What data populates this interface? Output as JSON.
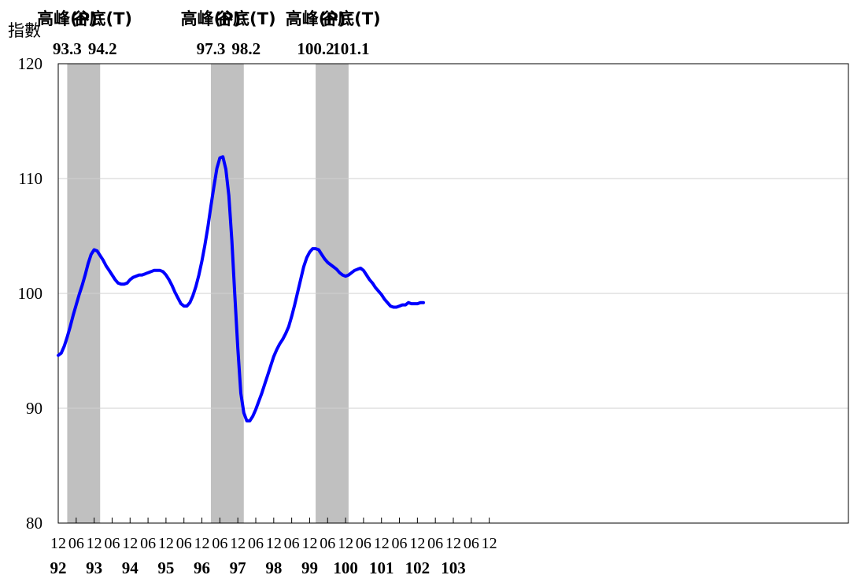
{
  "chart_data": {
    "type": "line",
    "ylabel": "指數",
    "ylim": [
      80,
      120
    ],
    "yticks": [
      80,
      90,
      100,
      110,
      120
    ],
    "xlim": [
      "1992-12",
      "2014-12"
    ],
    "x_month_ticks": [
      "12",
      "06",
      "12",
      "06",
      "12",
      "06",
      "12",
      "06",
      "12",
      "06",
      "12",
      "06",
      "12",
      "06",
      "12",
      "06",
      "12",
      "06",
      "12",
      "06",
      "12",
      "06",
      "12",
      "06",
      "12"
    ],
    "x_year_labels": [
      {
        "at": "1992-12",
        "label": "92"
      },
      {
        "at": "1993-12",
        "label": "93"
      },
      {
        "at": "1994-12",
        "label": "94"
      },
      {
        "at": "1995-12",
        "label": "95"
      },
      {
        "at": "1996-12",
        "label": "96"
      },
      {
        "at": "1997-12",
        "label": "97"
      },
      {
        "at": "1998-12",
        "label": "98"
      },
      {
        "at": "1999-12",
        "label": "99"
      },
      {
        "at": "2000-12",
        "label": "100"
      },
      {
        "at": "2001-12",
        "label": "101"
      },
      {
        "at": "2002-12",
        "label": "102"
      },
      {
        "at": "2003-12",
        "label": "103"
      }
    ],
    "grid": true,
    "line_color": "#0000ff",
    "shade_color": "#c0c0c0",
    "recessions": [
      {
        "start": "1993-03",
        "end": "1994-02",
        "peak_label": "高峰(P)",
        "peak_date": "93.3",
        "trough_label": "谷底(T)",
        "trough_date": "94.2"
      },
      {
        "start": "1997-03",
        "end": "1998-02",
        "peak_label": "高峰(P)",
        "peak_date": "97.3",
        "trough_label": "谷底(T)",
        "trough_date": "98.2"
      },
      {
        "start": "2000-02",
        "end": "2001-01",
        "peak_label": "高峰(P)",
        "peak_date": "100.2",
        "trough_label": "谷底(T)",
        "trough_date": "101.1"
      }
    ],
    "series": [
      {
        "values": [
          [
            "1992-12",
            94.6
          ],
          [
            "1993-01",
            94.8
          ],
          [
            "1993-02",
            95.4
          ],
          [
            "1993-03",
            96.2
          ],
          [
            "1993-04",
            97.1
          ],
          [
            "1993-05",
            98.1
          ],
          [
            "1993-06",
            99.0
          ],
          [
            "1993-07",
            99.9
          ],
          [
            "1993-08",
            100.7
          ],
          [
            "1993-09",
            101.6
          ],
          [
            "1993-10",
            102.6
          ],
          [
            "1993-11",
            103.4
          ],
          [
            "1993-12",
            103.8
          ],
          [
            "1994-01",
            103.7
          ],
          [
            "1994-02",
            103.3
          ],
          [
            "1994-03",
            102.9
          ],
          [
            "1994-04",
            102.4
          ],
          [
            "1994-05",
            102.0
          ],
          [
            "1994-06",
            101.6
          ],
          [
            "1994-07",
            101.2
          ],
          [
            "1994-08",
            100.9
          ],
          [
            "1994-09",
            100.8
          ],
          [
            "1994-10",
            100.8
          ],
          [
            "1994-11",
            100.9
          ],
          [
            "1994-12",
            101.2
          ],
          [
            "1995-01",
            101.4
          ],
          [
            "1995-02",
            101.5
          ],
          [
            "1995-03",
            101.6
          ],
          [
            "1995-04",
            101.6
          ],
          [
            "1995-05",
            101.7
          ],
          [
            "1995-06",
            101.8
          ],
          [
            "1995-07",
            101.9
          ],
          [
            "1995-08",
            102.0
          ],
          [
            "1995-09",
            102.0
          ],
          [
            "1995-10",
            102.0
          ],
          [
            "1995-11",
            101.9
          ],
          [
            "1995-12",
            101.6
          ],
          [
            "1996-01",
            101.2
          ],
          [
            "1996-02",
            100.7
          ],
          [
            "1996-03",
            100.1
          ],
          [
            "1996-04",
            99.6
          ],
          [
            "1996-05",
            99.1
          ],
          [
            "1996-06",
            98.9
          ],
          [
            "1996-07",
            98.9
          ],
          [
            "1996-08",
            99.2
          ],
          [
            "1996-09",
            99.8
          ],
          [
            "1996-10",
            100.6
          ],
          [
            "1996-11",
            101.6
          ],
          [
            "1996-12",
            102.8
          ],
          [
            "1997-01",
            104.2
          ],
          [
            "1997-02",
            105.8
          ],
          [
            "1997-03",
            107.6
          ],
          [
            "1997-04",
            109.3
          ],
          [
            "1997-05",
            110.9
          ],
          [
            "1997-06",
            111.8
          ],
          [
            "1997-07",
            111.9
          ],
          [
            "1997-08",
            110.8
          ],
          [
            "1997-09",
            108.5
          ],
          [
            "1997-10",
            104.6
          ],
          [
            "1997-11",
            99.8
          ],
          [
            "1997-12",
            95.2
          ],
          [
            "1998-01",
            91.3
          ],
          [
            "1998-02",
            89.6
          ],
          [
            "1998-03",
            88.9
          ],
          [
            "1998-04",
            88.9
          ],
          [
            "1998-05",
            89.3
          ],
          [
            "1998-06",
            89.9
          ],
          [
            "1998-07",
            90.6
          ],
          [
            "1998-08",
            91.3
          ],
          [
            "1998-09",
            92.1
          ],
          [
            "1998-10",
            92.9
          ],
          [
            "1998-11",
            93.7
          ],
          [
            "1998-12",
            94.5
          ],
          [
            "1999-01",
            95.1
          ],
          [
            "1999-02",
            95.6
          ],
          [
            "1999-03",
            96.0
          ],
          [
            "1999-04",
            96.5
          ],
          [
            "1999-05",
            97.1
          ],
          [
            "1999-06",
            98.0
          ],
          [
            "1999-07",
            99.0
          ],
          [
            "1999-08",
            100.1
          ],
          [
            "1999-09",
            101.2
          ],
          [
            "1999-10",
            102.3
          ],
          [
            "1999-11",
            103.1
          ],
          [
            "1999-12",
            103.6
          ],
          [
            "2000-01",
            103.9
          ],
          [
            "2000-02",
            103.9
          ],
          [
            "2000-03",
            103.8
          ],
          [
            "2000-04",
            103.4
          ],
          [
            "2000-05",
            103.0
          ],
          [
            "2000-06",
            102.7
          ],
          [
            "2000-07",
            102.5
          ],
          [
            "2000-08",
            102.3
          ],
          [
            "2000-09",
            102.1
          ],
          [
            "2000-10",
            101.8
          ],
          [
            "2000-11",
            101.6
          ],
          [
            "2000-12",
            101.5
          ],
          [
            "2001-01",
            101.6
          ],
          [
            "2001-02",
            101.8
          ],
          [
            "2001-03",
            102.0
          ],
          [
            "2001-04",
            102.1
          ],
          [
            "2001-05",
            102.2
          ],
          [
            "2001-06",
            102.0
          ],
          [
            "2001-07",
            101.6
          ],
          [
            "2001-08",
            101.2
          ],
          [
            "2001-09",
            100.9
          ],
          [
            "2001-10",
            100.5
          ],
          [
            "2001-11",
            100.2
          ],
          [
            "2001-12",
            99.9
          ],
          [
            "2002-01",
            99.5
          ],
          [
            "2002-02",
            99.2
          ],
          [
            "2002-03",
            98.9
          ],
          [
            "2002-04",
            98.8
          ],
          [
            "2002-05",
            98.8
          ],
          [
            "2002-06",
            98.9
          ],
          [
            "2002-07",
            99.0
          ],
          [
            "2002-08",
            99.0
          ],
          [
            "2002-09",
            99.2
          ],
          [
            "2002-10",
            99.1
          ],
          [
            "2002-11",
            99.1
          ],
          [
            "2002-12",
            99.1
          ],
          [
            "2003-01",
            99.2
          ],
          [
            "2003-02",
            99.2
          ]
        ]
      }
    ]
  }
}
